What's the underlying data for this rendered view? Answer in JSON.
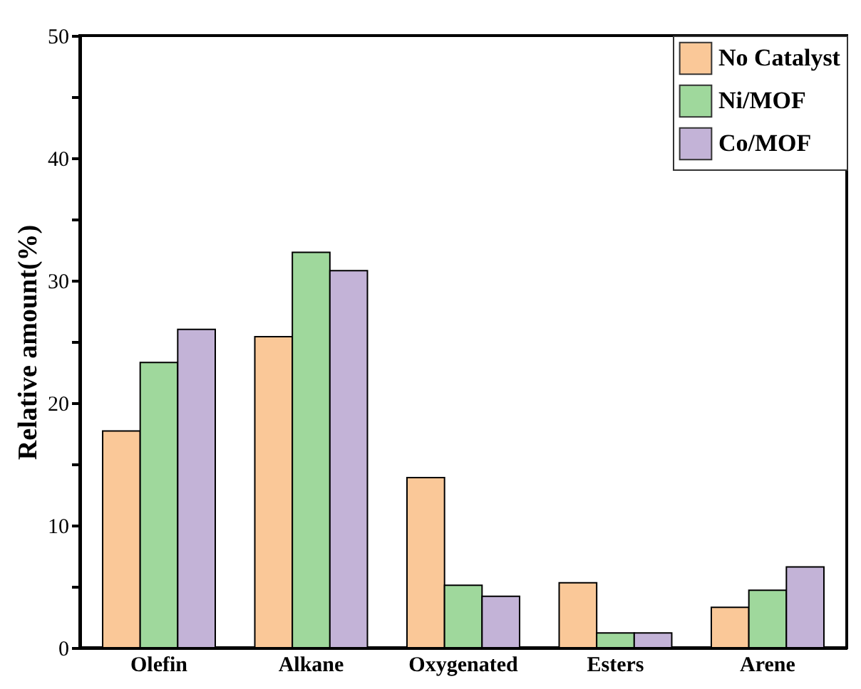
{
  "chart_data": {
    "type": "bar",
    "ylabel": "Relative amount(%)",
    "categories": [
      "Olefin",
      "Alkane",
      "Oxygenated",
      "Esters",
      "Arene"
    ],
    "series": [
      {
        "name": "No Catalyst",
        "color": "#fac898",
        "values": [
          17.7,
          25.4,
          13.9,
          5.3,
          3.3
        ]
      },
      {
        "name": "Ni/MOF",
        "color": "#9fd89c",
        "values": [
          23.3,
          32.3,
          5.1,
          1.2,
          4.7
        ]
      },
      {
        "name": "Co/MOF",
        "color": "#c3b3d7",
        "values": [
          26.0,
          30.8,
          4.2,
          1.2,
          6.6
        ]
      }
    ],
    "ylim": [
      0,
      50
    ],
    "yticks": [
      0,
      {
        "value": 5,
        "label": null
      },
      10,
      {
        "value": 15,
        "label": null
      },
      20,
      {
        "value": 25,
        "label": null
      },
      30,
      {
        "value": 35,
        "label": null
      },
      40,
      {
        "value": 45,
        "label": null
      },
      50
    ],
    "grid": false,
    "legend": "top right"
  }
}
